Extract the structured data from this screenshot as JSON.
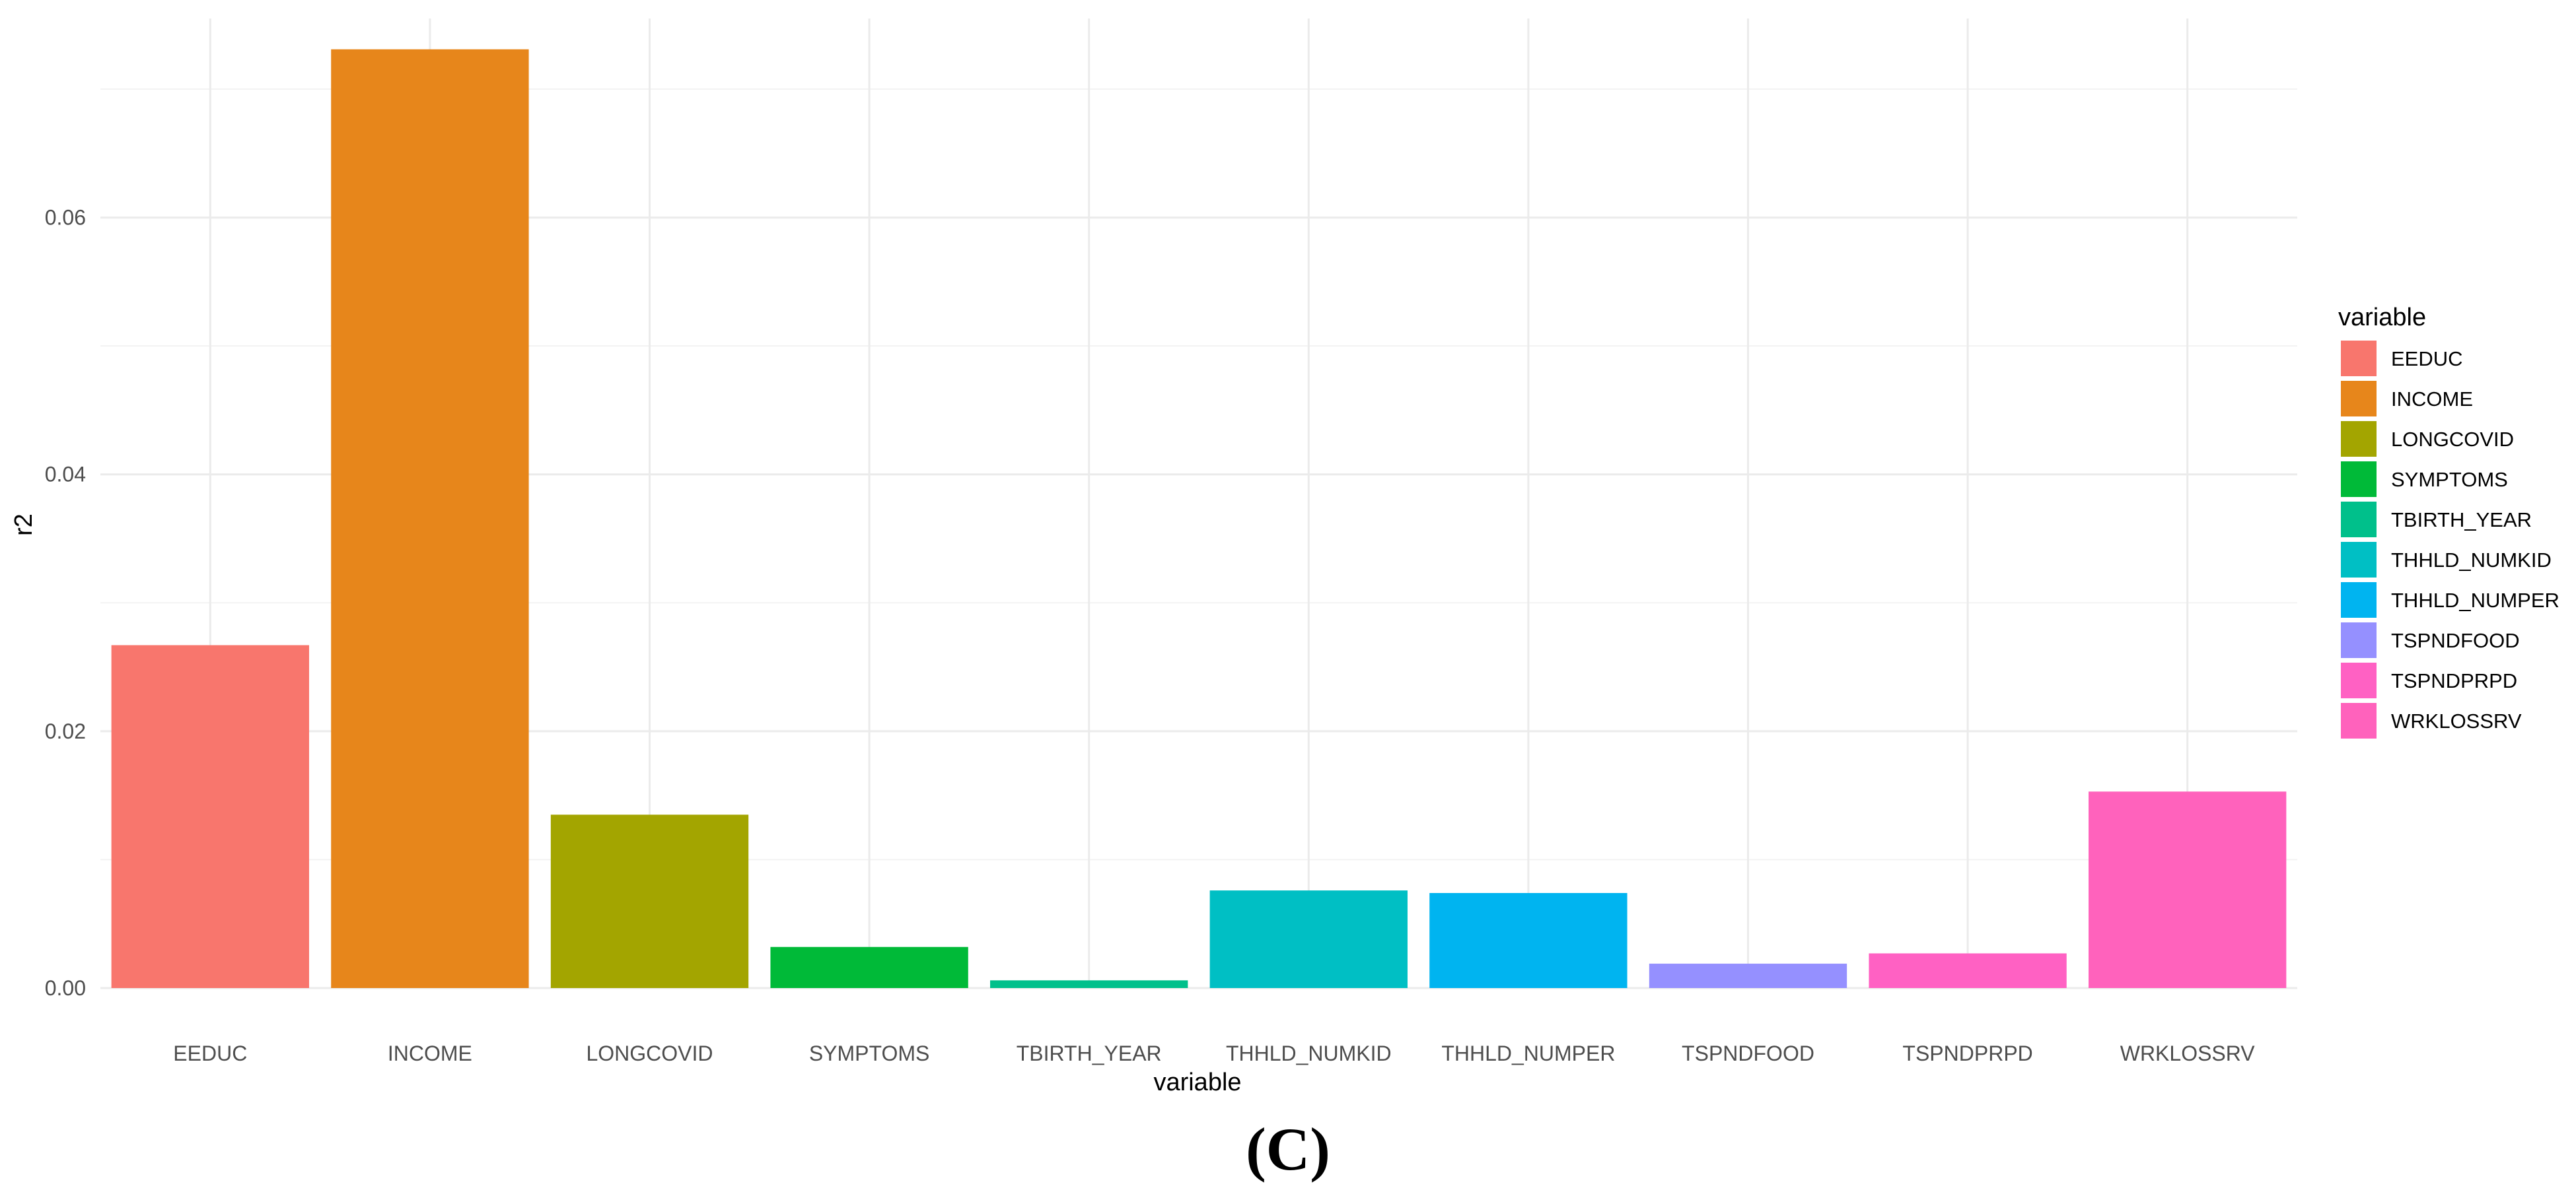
{
  "panel_label": "(C)",
  "chart_data": {
    "type": "bar",
    "categories": [
      "EEDUC",
      "INCOME",
      "LONGCOVID",
      "SYMPTOMS",
      "TBIRTH_YEAR",
      "THHLD_NUMKID",
      "THHLD_NUMPER",
      "TSPNDFOOD",
      "TSPNDPRPD",
      "WRKLOSSRV"
    ],
    "values": [
      0.0267,
      0.0731,
      0.0135,
      0.0032,
      0.0006,
      0.0076,
      0.0074,
      0.0019,
      0.0027,
      0.0153
    ],
    "colors": [
      "#F8766D",
      "#E7861B",
      "#A3A500",
      "#00BA38",
      "#00C08B",
      "#00BFC4",
      "#00B4F0",
      "#9590FF",
      "#FF61C3",
      "#FF62BC"
    ],
    "title": "",
    "xlabel": "variable",
    "ylabel": "r2",
    "ylim": [
      0,
      0.0755
    ],
    "yticks": [
      0.0,
      0.02,
      0.04,
      0.06
    ],
    "ytick_labels": [
      "0.00",
      "0.02",
      "0.04",
      "0.06"
    ],
    "grid": true,
    "legend": {
      "title": "variable",
      "position": "right",
      "entries": [
        "EEDUC",
        "INCOME",
        "LONGCOVID",
        "SYMPTOMS",
        "TBIRTH_YEAR",
        "THHLD_NUMKID",
        "THHLD_NUMPER",
        "TSPNDFOOD",
        "TSPNDPRPD",
        "WRKLOSSRV"
      ]
    }
  }
}
